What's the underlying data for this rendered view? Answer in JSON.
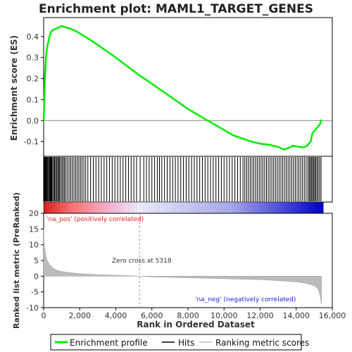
{
  "chart_data": {
    "type": "line",
    "title": "Enrichment plot: MAML1_TARGET_GENES",
    "top_panel": {
      "ylabel": "Enrichment score (ES)",
      "ylim": [
        -0.17,
        0.49
      ],
      "yticks": [
        -0.1,
        0.0,
        0.1,
        0.2,
        0.3,
        0.4
      ],
      "ytick_labels": [
        "-0.1",
        "0.0",
        "0.1",
        "0.2",
        "0.3",
        "0.4"
      ],
      "series": [
        {
          "name": "Enrichment profile",
          "color": "#00ee00",
          "x": [
            0,
            40,
            80,
            130,
            180,
            250,
            320,
            400,
            500,
            620,
            750,
            900,
            1000,
            1150,
            1400,
            1800,
            2300,
            3000,
            4000,
            5000,
            5318,
            6000,
            7000,
            8000,
            9000,
            10000,
            10500,
            11000,
            11500,
            12000,
            12500,
            13000,
            13300,
            13600,
            13800,
            14200,
            14400,
            14600,
            14800,
            14900,
            15100,
            15300,
            15400
          ],
          "y": [
            0.0,
            0.1,
            0.22,
            0.3,
            0.34,
            0.37,
            0.4,
            0.42,
            0.43,
            0.435,
            0.44,
            0.445,
            0.45,
            0.445,
            0.44,
            0.425,
            0.4,
            0.36,
            0.3,
            0.235,
            0.215,
            0.175,
            0.115,
            0.055,
            0.005,
            -0.045,
            -0.07,
            -0.085,
            -0.1,
            -0.11,
            -0.115,
            -0.125,
            -0.138,
            -0.13,
            -0.12,
            -0.125,
            -0.128,
            -0.12,
            -0.1,
            -0.06,
            -0.04,
            -0.02,
            0.005
          ]
        }
      ]
    },
    "hits_panel": {
      "legend_label": "Hits",
      "hit_ranks": [
        5,
        20,
        45,
        70,
        100,
        130,
        160,
        200,
        240,
        280,
        330,
        370,
        410,
        450,
        500,
        560,
        610,
        660,
        720,
        780,
        830,
        880,
        950,
        1020,
        1090,
        1150,
        1230,
        1320,
        1410,
        1500,
        1590,
        1680,
        1770,
        1860,
        1950,
        2040,
        2130,
        2230,
        2330,
        2450,
        2600,
        2750,
        2900,
        3050,
        3200,
        3350,
        3500,
        3650,
        3800,
        3950,
        4100,
        4250,
        4400,
        4550,
        4700,
        4850,
        5000,
        5150,
        5350,
        5550,
        5700,
        5850,
        6000,
        6150,
        6300,
        6420,
        6550,
        6700,
        6850,
        7000,
        7150,
        7300,
        7450,
        7600,
        7750,
        7900,
        8050,
        8200,
        8350,
        8500,
        8650,
        8800,
        8950,
        9100,
        9250,
        9400,
        9550,
        9700,
        9850,
        10000,
        10150,
        10300,
        10450,
        10600,
        10750,
        10900,
        11050,
        11150,
        11250,
        11350,
        11450,
        11550,
        11650,
        11750,
        11850,
        11950,
        12050,
        12150,
        12250,
        12350,
        12450,
        12550,
        12650,
        12750,
        12850,
        12950,
        13050,
        13150,
        13250,
        13350,
        13450,
        13550,
        13650,
        13750,
        13850,
        13950,
        14050,
        14150,
        14250,
        14350,
        14450,
        14550,
        14650,
        14720,
        14780,
        14840,
        14900,
        14960,
        15020,
        15080,
        15150,
        15220,
        15300,
        15380
      ]
    },
    "bottom_panel": {
      "ylabel": "Ranked list metric (PreRanked)",
      "ylim": [
        -10,
        20
      ],
      "yticks": [
        -10,
        -5,
        0,
        5,
        10,
        15,
        20
      ],
      "ytick_labels": [
        "-10",
        "-5",
        "0",
        "5",
        "10",
        "15",
        "20"
      ],
      "series_name": "Ranking metric scores",
      "x": [
        0,
        20,
        50,
        100,
        150,
        200,
        300,
        400,
        600,
        800,
        1000,
        1500,
        2000,
        3000,
        4000,
        5000,
        5318,
        6000,
        8000,
        10000,
        12000,
        13000,
        14000,
        14500,
        15000,
        15200,
        15300,
        15350,
        15400
      ],
      "y": [
        15,
        11,
        9,
        7.5,
        6,
        5,
        4,
        3.2,
        2.3,
        1.8,
        1.5,
        1.1,
        0.8,
        0.5,
        0.3,
        0.1,
        0.0,
        -0.2,
        -0.5,
        -0.8,
        -1.1,
        -1.4,
        -1.8,
        -2.2,
        -3.0,
        -4.0,
        -5.5,
        -7.0,
        -9.0
      ],
      "annotations": {
        "pos": "'na_pos' (positively correlated)",
        "zero_cross": "Zero cross at 5318",
        "neg": "'na_neg' (negatively correlated)"
      }
    },
    "xlabel": "Rank in Ordered Dataset",
    "xlim": [
      0,
      15500
    ],
    "xticks": [
      0,
      2000,
      4000,
      6000,
      8000,
      10000,
      12000,
      14000,
      16000
    ],
    "xtick_labels": [
      "0",
      "2,000",
      "4,000",
      "6,000",
      "8,000",
      "10,000",
      "12,000",
      "14,000",
      "16,000"
    ],
    "zero_cross": 5318,
    "colors": {
      "es_line": "#00ee00",
      "hits": "#000000",
      "metric_fill": "#bbbbbb",
      "pos_label": "#dd2222",
      "neg_label": "#2222cc",
      "bar_pos": "#ff0000",
      "bar_neg": "#0000ff"
    },
    "legend": [
      "Enrichment profile",
      "Hits",
      "Ranking metric scores"
    ]
  }
}
